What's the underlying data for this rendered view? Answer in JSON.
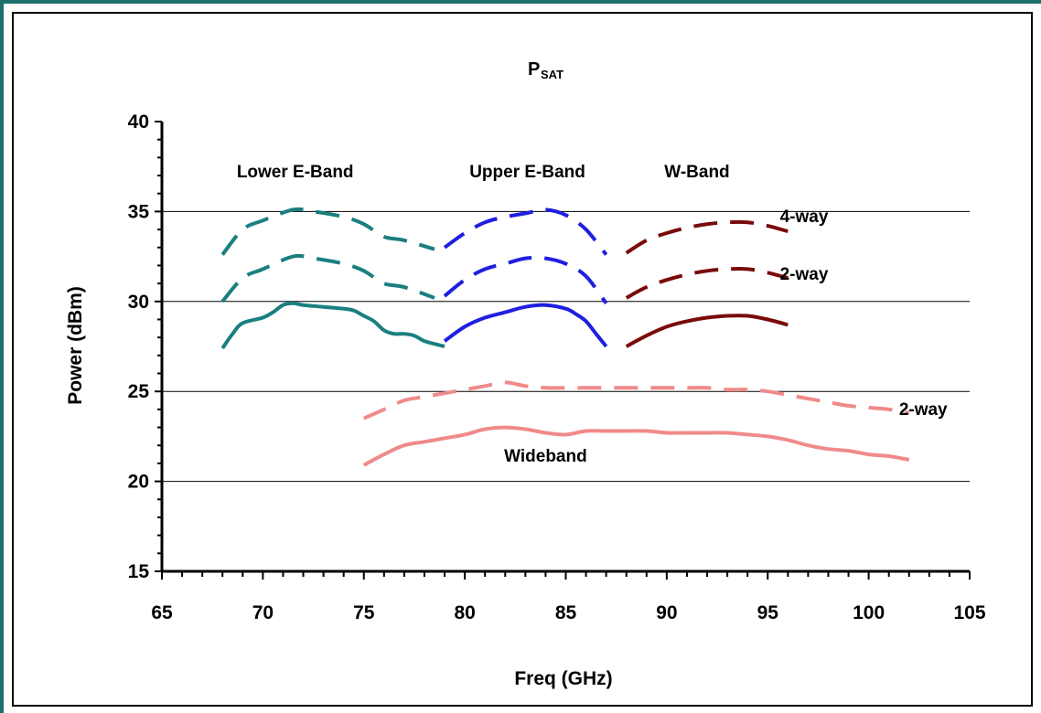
{
  "chart_data": {
    "type": "line",
    "title": "P",
    "title_subscript": "SAT",
    "xlabel": "Freq (GHz)",
    "ylabel": "Power (dBm)",
    "xlim": [
      65,
      105
    ],
    "ylim": [
      15,
      40
    ],
    "x_ticks": [
      65,
      70,
      75,
      80,
      85,
      90,
      95,
      100,
      105
    ],
    "y_ticks": [
      15,
      20,
      25,
      30,
      35,
      40
    ],
    "grid": "horizontal",
    "legend": "none",
    "annotations": [
      {
        "text": "Lower E-Band",
        "x": 71.6,
        "y": 36.9
      },
      {
        "text": "Upper E-Band",
        "x": 83.1,
        "y": 36.9
      },
      {
        "text": "W-Band",
        "x": 91.5,
        "y": 36.9
      },
      {
        "text": "4-way",
        "x": 96.8,
        "y": 34.4
      },
      {
        "text": "2-way",
        "x": 96.8,
        "y": 31.2
      },
      {
        "text": "2-way",
        "x": 102.7,
        "y": 23.7
      },
      {
        "text": "Wideband",
        "x": 84,
        "y": 21.1
      }
    ],
    "series": [
      {
        "color": "#1a7f7f",
        "dash": true,
        "x": [
          68,
          69,
          70,
          71.5,
          72.5,
          74,
          75,
          76,
          77,
          78.5
        ],
        "y": [
          32.6,
          34,
          34.5,
          35.1,
          35,
          34.7,
          34.3,
          33.6,
          33.4,
          32.9
        ]
      },
      {
        "color": "#1a7f7f",
        "dash": true,
        "x": [
          68,
          69,
          70,
          71.5,
          72.5,
          74,
          75,
          76,
          77,
          78.5
        ],
        "y": [
          30,
          31.3,
          31.8,
          32.5,
          32.4,
          32.1,
          31.7,
          31,
          30.8,
          30.2
        ]
      },
      {
        "color": "#1a7f7f",
        "dash": false,
        "x": [
          68,
          68.5,
          69,
          70,
          70.5,
          71,
          71.5,
          72,
          73,
          74,
          74.5,
          75,
          75.5,
          76,
          76.5,
          77,
          77.5,
          78,
          79
        ],
        "y": [
          27.4,
          28.2,
          28.8,
          29.1,
          29.4,
          29.8,
          29.9,
          29.8,
          29.7,
          29.6,
          29.5,
          29.2,
          28.9,
          28.4,
          28.2,
          28.2,
          28.1,
          27.8,
          27.5
        ]
      },
      {
        "color": "#1f1fe0",
        "dash": true,
        "x": [
          79,
          80,
          81,
          82,
          83,
          84,
          85,
          86,
          87
        ],
        "y": [
          33,
          33.8,
          34.4,
          34.7,
          34.9,
          35.1,
          34.8,
          34,
          32.6
        ]
      },
      {
        "color": "#1f1fe0",
        "dash": true,
        "x": [
          79,
          80,
          81,
          82,
          83,
          84,
          85,
          86,
          87
        ],
        "y": [
          30.3,
          31.2,
          31.8,
          32.1,
          32.4,
          32.4,
          32.1,
          31.4,
          29.9
        ]
      },
      {
        "color": "#1f1fe0",
        "dash": false,
        "x": [
          79,
          80,
          81,
          82,
          83,
          84,
          85,
          85.5,
          86,
          86.5,
          87
        ],
        "y": [
          27.8,
          28.6,
          29.1,
          29.4,
          29.7,
          29.8,
          29.6,
          29.3,
          28.9,
          28.2,
          27.5
        ]
      },
      {
        "color": "#7a0a0a",
        "dash": true,
        "x": [
          88,
          89,
          90,
          91,
          92,
          93,
          94,
          95,
          96
        ],
        "y": [
          32.7,
          33.4,
          33.8,
          34.1,
          34.3,
          34.4,
          34.4,
          34.2,
          33.9
        ]
      },
      {
        "color": "#7a0a0a",
        "dash": true,
        "x": [
          88,
          89,
          90,
          91,
          92,
          93,
          94,
          95,
          96
        ],
        "y": [
          30.2,
          30.8,
          31.2,
          31.5,
          31.7,
          31.8,
          31.8,
          31.6,
          31.3
        ]
      },
      {
        "color": "#7a0a0a",
        "dash": false,
        "x": [
          88,
          89,
          90,
          91,
          92,
          93,
          94,
          95,
          96
        ],
        "y": [
          27.5,
          28.1,
          28.6,
          28.9,
          29.1,
          29.2,
          29.2,
          29,
          28.7
        ]
      },
      {
        "color": "#f08a8a",
        "dash": true,
        "x": [
          75,
          76,
          77,
          78,
          79,
          80,
          81,
          82,
          83,
          84,
          85,
          86,
          87,
          88,
          89,
          90,
          91,
          92,
          93,
          94,
          95,
          96,
          97,
          98,
          99,
          100,
          101,
          102
        ],
        "y": [
          23.5,
          24,
          24.5,
          24.7,
          24.9,
          25.1,
          25.3,
          25.5,
          25.3,
          25.2,
          25.2,
          25.2,
          25.2,
          25.2,
          25.2,
          25.2,
          25.2,
          25.2,
          25.1,
          25.1,
          25,
          24.8,
          24.6,
          24.4,
          24.2,
          24.1,
          24,
          23.8
        ]
      },
      {
        "color": "#f08a8a",
        "dash": false,
        "x": [
          75,
          76,
          77,
          78,
          79,
          80,
          81,
          82,
          83,
          84,
          85,
          86,
          87,
          88,
          89,
          90,
          91,
          92,
          93,
          94,
          95,
          96,
          97,
          98,
          99,
          100,
          101,
          102
        ],
        "y": [
          20.9,
          21.5,
          22,
          22.2,
          22.4,
          22.6,
          22.9,
          23,
          22.9,
          22.7,
          22.6,
          22.8,
          22.8,
          22.8,
          22.8,
          22.7,
          22.7,
          22.7,
          22.7,
          22.6,
          22.5,
          22.3,
          22,
          21.8,
          21.7,
          21.5,
          21.4,
          21.2
        ]
      }
    ]
  }
}
